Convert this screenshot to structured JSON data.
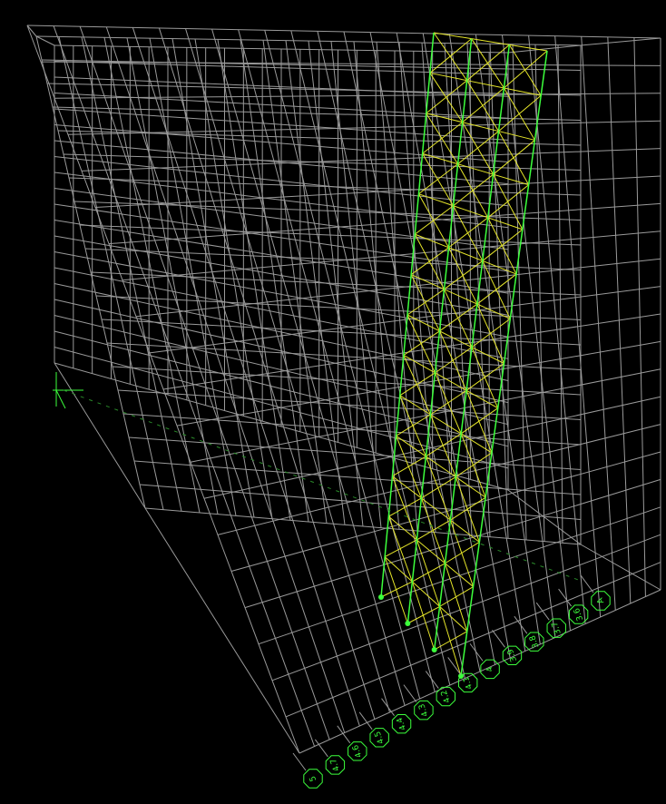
{
  "viewport": {
    "grid_bubbles": [
      "5",
      "4.7",
      "4.6",
      "4.5",
      "4.4",
      "4.3",
      "4.2",
      "4.1",
      "4",
      "3.9",
      "3.8",
      "3.7",
      "3.6",
      "A"
    ]
  }
}
